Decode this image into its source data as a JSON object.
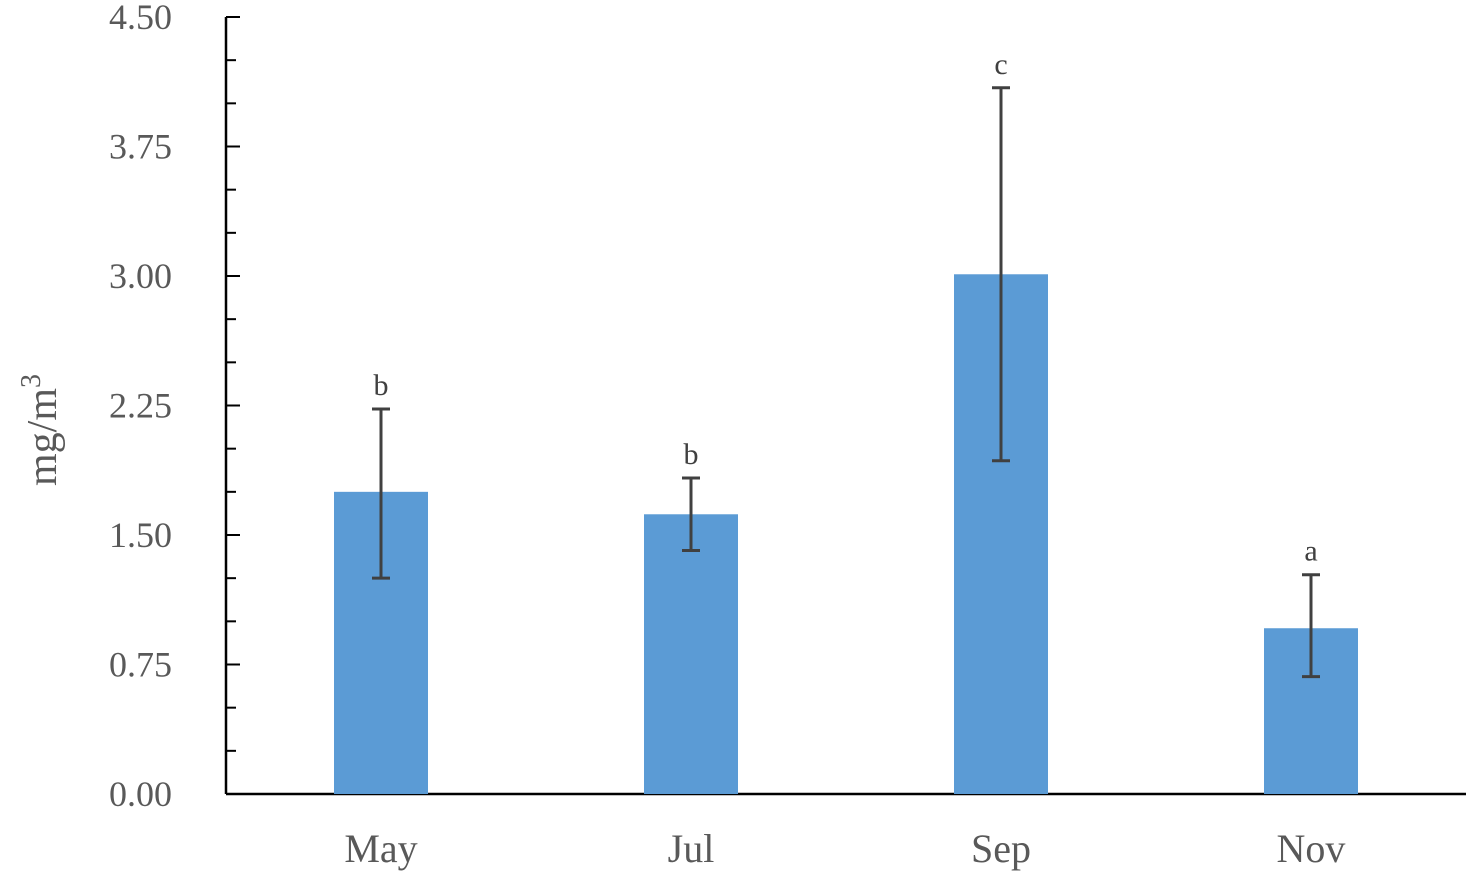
{
  "chart_data": {
    "type": "bar",
    "categories": [
      "May",
      "Jul",
      "Sep",
      "Nov"
    ],
    "values": [
      1.75,
      1.62,
      3.01,
      0.96
    ],
    "error_low": [
      1.25,
      1.41,
      1.93,
      0.68
    ],
    "error_high": [
      2.23,
      1.83,
      4.09,
      1.27
    ],
    "significance": [
      "b",
      "b",
      "c",
      "a"
    ],
    "ylabel": "mg/m",
    "ylabel_superscript": "3",
    "ylim": [
      0,
      4.5
    ],
    "yticks": [
      "0.00",
      "0.75",
      "1.50",
      "2.25",
      "3.00",
      "3.75",
      "4.50"
    ],
    "bar_color": "#5b9bd5",
    "error_color": "#404040",
    "grid": false,
    "legend": "none"
  }
}
